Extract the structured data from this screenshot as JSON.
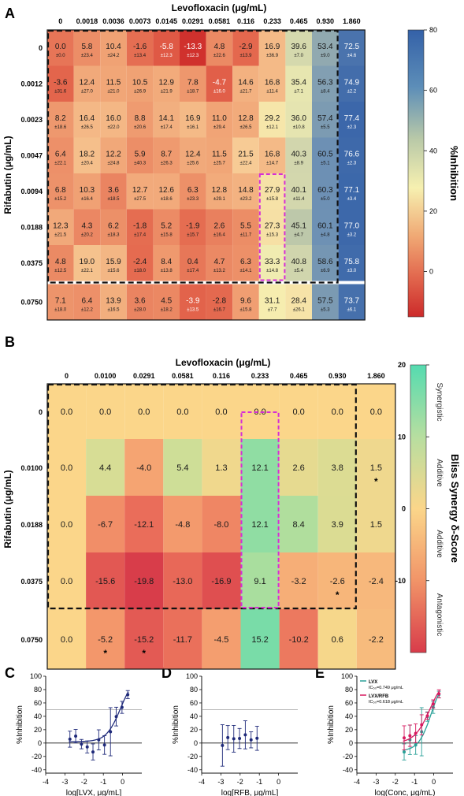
{
  "panels": {
    "a": "A",
    "b": "B",
    "c": "C",
    "d": "D",
    "e": "E"
  },
  "chart_data": [
    {
      "type": "heatmap",
      "panel": "A",
      "xlabel": "Levofloxacin (μg/mL)",
      "ylabel": "Rifabutin (μg/mL)",
      "colorbar_label": "%Inhibition",
      "colorbar_ticks": [
        "80",
        "60",
        "40",
        "20",
        "0"
      ],
      "colorbar_range": [
        -15,
        80
      ],
      "x": [
        "0",
        "0.0018",
        "0.0036",
        "0.0073",
        "0.0145",
        "0.0291",
        "0.0581",
        "0.116",
        "0.233",
        "0.465",
        "0.930",
        "1.860"
      ],
      "y": [
        "0",
        "0.0012",
        "0.0023",
        "0.0047",
        "0.0094",
        "0.0188",
        "0.0375",
        "0.0750"
      ],
      "values": [
        [
          0.0,
          5.8,
          10.4,
          -1.6,
          -5.8,
          -13.3,
          4.8,
          -2.9,
          16.9,
          39.6,
          53.4,
          72.5
        ],
        [
          -3.6,
          12.4,
          11.5,
          10.5,
          12.9,
          7.8,
          -4.7,
          14.6,
          16.8,
          35.4,
          56.3,
          74.9
        ],
        [
          8.2,
          16.4,
          16.0,
          8.8,
          14.1,
          16.9,
          11.0,
          12.8,
          29.2,
          36.0,
          57.4,
          77.4
        ],
        [
          6.4,
          18.2,
          12.2,
          5.9,
          8.7,
          12.4,
          11.5,
          21.5,
          16.8,
          40.3,
          60.5,
          76.6
        ],
        [
          6.8,
          10.3,
          3.6,
          12.7,
          12.6,
          6.3,
          12.8,
          14.8,
          27.9,
          40.1,
          60.3,
          77.1
        ],
        [
          12.3,
          4.3,
          6.2,
          -1.8,
          5.2,
          -1.9,
          2.6,
          5.5,
          27.3,
          45.1,
          60.1,
          77.0
        ],
        [
          4.8,
          19.0,
          15.9,
          -2.4,
          8.4,
          0.4,
          4.7,
          6.3,
          33.3,
          40.8,
          58.6,
          75.8
        ],
        [
          7.1,
          6.4,
          13.9,
          3.6,
          4.5,
          -3.9,
          -2.8,
          9.6,
          31.1,
          28.4,
          57.5,
          73.7
        ]
      ],
      "errors": [
        [
          "±0.0",
          "±23.4",
          "±24.2",
          "±13.4",
          "±12.3",
          "±12.3",
          "±22.6",
          "±13.9",
          "±36.9",
          "±7.0",
          "±9.0",
          "±4.6"
        ],
        [
          "±31.6",
          "±27.0",
          "±21.0",
          "±26.9",
          "±21.9",
          "±18.7",
          "±16.0",
          "±21.7",
          "±11.4",
          "±7.1",
          "±8.4",
          "±2.2"
        ],
        [
          "±18.6",
          "±26.5",
          "±22.0",
          "±20.6",
          "±17.4",
          "±16.1",
          "±29.4",
          "±26.5",
          "±12.1",
          "±10.8",
          "±5.5",
          "±2.3"
        ],
        [
          "±22.1",
          "±20.4",
          "±24.8",
          "±40.3",
          "±26.3",
          "±25.6",
          "±25.7",
          "±22.4",
          "±14.7",
          "±8.9",
          "±5.1",
          "±2.3"
        ],
        [
          "±15.2",
          "±16.4",
          "±18.5",
          "±27.5",
          "±18.6",
          "±23.3",
          "±29.1",
          "±23.2",
          "±15.8",
          "±11.4",
          "±5.0",
          "±3.4"
        ],
        [
          "±21.5",
          "±20.2",
          "±18.3",
          "±17.4",
          "±15.8",
          "±15.7",
          "±16.4",
          "±11.7",
          "±15.3",
          "±4.7",
          "±4.8",
          "±3.2"
        ],
        [
          "±12.5",
          "±22.1",
          "±15.6",
          "±18.0",
          "±13.8",
          "±17.4",
          "±13.2",
          "±14.1",
          "±14.8",
          "±5.4",
          "±6.9",
          "±3.0"
        ],
        [
          "±18.0",
          "±12.2",
          "±16.5",
          "±28.0",
          "±18.2",
          "±13.5",
          "±16.7",
          "±15.8",
          "±7.7",
          "±26.1",
          "±5.3",
          "±6.1"
        ]
      ]
    },
    {
      "type": "heatmap",
      "panel": "B",
      "xlabel": "Levofloxacin (μg/mL)",
      "ylabel": "Rifabutin (μg/mL)",
      "colorbar_label": "Bliss Synergy δ-Score",
      "colorbar_ticks": [
        "20",
        "10",
        "0",
        "-10"
      ],
      "colorbar_range": [
        -20,
        20
      ],
      "colorbar_regions": [
        "Synergistic",
        "Additive",
        "Additive",
        "Antagonistic"
      ],
      "x": [
        "0",
        "0.0100",
        "0.0291",
        "0.0581",
        "0.116",
        "0.233",
        "0.465",
        "0.930",
        "1.860"
      ],
      "y": [
        "0",
        "0.0100",
        "0.0188",
        "0.0375",
        "0.0750"
      ],
      "values": [
        [
          0.0,
          0.0,
          0.0,
          0.0,
          0.0,
          0.0,
          0.0,
          0.0,
          0.0
        ],
        [
          0.0,
          4.4,
          -4.0,
          5.4,
          1.3,
          12.1,
          2.6,
          3.8,
          1.5
        ],
        [
          0.0,
          -6.7,
          -12.1,
          -4.8,
          -8.0,
          12.1,
          8.4,
          3.9,
          1.5
        ],
        [
          0.0,
          -15.6,
          -19.8,
          -13.0,
          -16.9,
          9.1,
          -3.2,
          -2.6,
          -2.4
        ],
        [
          0.0,
          -5.2,
          -15.2,
          -11.7,
          -4.5,
          15.2,
          -10.2,
          0.6,
          -2.2
        ]
      ],
      "significance_marker": "*",
      "significant_cells": [
        [
          1,
          8
        ],
        [
          3,
          7
        ],
        [
          4,
          1
        ],
        [
          4,
          2
        ]
      ]
    },
    {
      "type": "scatter",
      "panel": "C",
      "xlabel": "log[LVX, μg/mL]",
      "ylabel": "%Inhibition",
      "xlim": [
        -4,
        1
      ],
      "ylim": [
        -45,
        100
      ],
      "xticks": [
        "-4",
        "-3",
        "-2",
        "-1",
        "0"
      ],
      "yticks": [
        "100",
        "80",
        "60",
        "40",
        "20",
        "0",
        "-20",
        "-40"
      ],
      "reference_line": 50,
      "series": [
        {
          "color": "#1f2a7a",
          "x": [
            -2.74,
            -2.44,
            -2.14,
            -1.84,
            -1.54,
            -1.24,
            -0.94,
            -0.63,
            -0.33,
            -0.03,
            0.27
          ],
          "y": [
            5.8,
            10.4,
            -1.6,
            -5.8,
            -13.3,
            4.8,
            -2.9,
            16.9,
            39.6,
            53.4,
            72.5
          ],
          "err": [
            12,
            10,
            7,
            9,
            12,
            15,
            14,
            36,
            14,
            9,
            6
          ]
        }
      ]
    },
    {
      "type": "scatter",
      "panel": "D",
      "xlabel": "log[RFB, μg/mL]",
      "ylabel": "%Inhibition",
      "xlim": [
        -4,
        1
      ],
      "ylim": [
        -45,
        100
      ],
      "xticks": [
        "-4",
        "-3",
        "-2",
        "-1",
        "0"
      ],
      "yticks": [
        "100",
        "80",
        "60",
        "40",
        "20",
        "0",
        "-20",
        "-40"
      ],
      "reference_line": 50,
      "series": [
        {
          "color": "#1f2a7a",
          "x": [
            -2.92,
            -2.64,
            -2.33,
            -2.03,
            -1.73,
            -1.43,
            -1.12
          ],
          "y": [
            -3.6,
            8.2,
            6.4,
            6.8,
            12.3,
            4.8,
            7.1
          ],
          "err": [
            31,
            18,
            20,
            15,
            21,
            12,
            18
          ]
        }
      ]
    },
    {
      "type": "scatter",
      "panel": "E",
      "xlabel": "log(Conc, μg/mL)",
      "ylabel": "%Inhibition",
      "xlim": [
        -4,
        1
      ],
      "ylim": [
        -45,
        100
      ],
      "xticks": [
        "-4",
        "-3",
        "-2",
        "-1",
        "0"
      ],
      "yticks": [
        "100",
        "80",
        "60",
        "40",
        "20",
        "0",
        "-20",
        "-40"
      ],
      "reference_line": 50,
      "legend": [
        {
          "name": "LVX",
          "note": "IC₅₀=0.749 μg/mL"
        },
        {
          "name": "LVX/RFB",
          "note": "IC₅₀=0.618 μg/mL"
        }
      ],
      "series": [
        {
          "name": "LVX",
          "color": "#2aa198",
          "x": [
            -1.54,
            -1.24,
            -0.94,
            -0.63,
            -0.33,
            -0.03,
            0.27
          ],
          "y": [
            -13.3,
            4.8,
            -2.9,
            16.9,
            39.6,
            53.4,
            72.5
          ],
          "err": [
            12,
            22,
            14,
            36,
            7,
            9,
            5
          ]
        },
        {
          "name": "LVX/RFB",
          "color": "#d81b60",
          "x": [
            -1.54,
            -1.24,
            -0.94,
            -0.63,
            -0.33,
            -0.03,
            0.27
          ],
          "y": [
            7.8,
            11.0,
            14.6,
            27.3,
            40.8,
            58.6,
            73.7
          ],
          "err": [
            18,
            16,
            14,
            15,
            5,
            6,
            6
          ]
        }
      ]
    }
  ]
}
